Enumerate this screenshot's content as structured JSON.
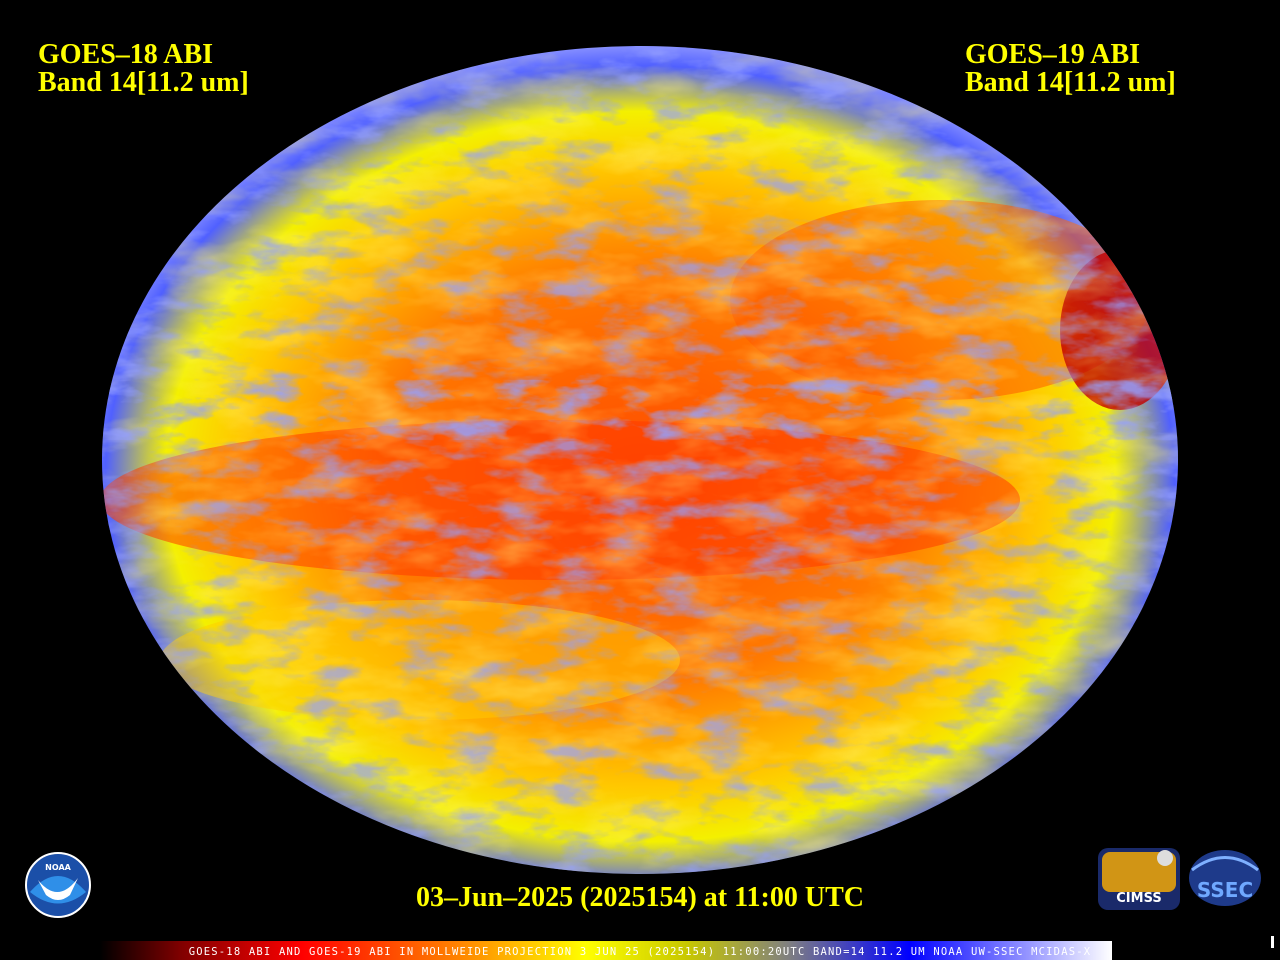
{
  "header": {
    "left": {
      "satellite": "GOES–18 ABI",
      "band": "Band 14[11.2 um]"
    },
    "right": {
      "satellite": "GOES–19 ABI",
      "band": "Band 14[11.2 um]"
    }
  },
  "footer": {
    "timestamp": "03–Jun–2025 (2025154) at 11:00 UTC",
    "colorbar_caption": "GOES-18 ABI AND GOES-19 ABI IN MOLLWEIDE PROJECTION 3 JUN 25 (2025154) 11:00:20UTC BAND=14 11.2 UM NOAA UW-SSEC MCIDAS-X"
  },
  "logos": {
    "noaa": "NOAA",
    "cimss": "CIMSS",
    "ssec": "SSEC"
  }
}
